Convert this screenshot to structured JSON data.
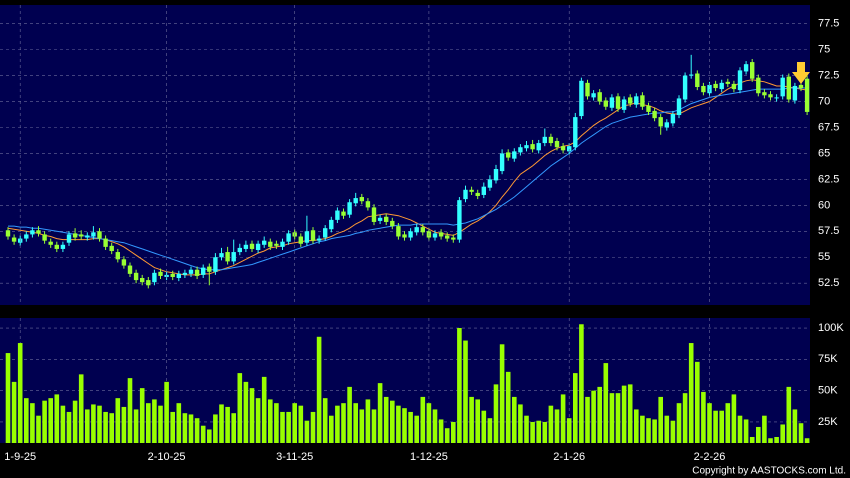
{
  "chart_data": [
    {
      "type": "candlestick",
      "ylim": [
        50.4,
        79.3
      ],
      "yticks": [
        52.5,
        55,
        57.5,
        60,
        62.5,
        65,
        67.5,
        70,
        72.5,
        75,
        77.5
      ],
      "grid": true,
      "up_color": "#33ffff",
      "down_color": "#99ff33",
      "open": [
        57.6,
        56.9,
        56.4,
        56.8,
        57.2,
        57.6,
        57.2,
        56.5,
        56.2,
        55.8,
        56.4,
        57.3,
        57.2,
        56.9,
        57.0,
        57.5,
        56.8,
        56.1,
        55.5,
        54.8,
        54.2,
        53.5,
        53.0,
        52.8,
        52.6,
        53.6,
        53.1,
        53.4,
        53.0,
        53.3,
        53.4,
        53.8,
        53.3,
        54.1,
        53.6,
        55.0,
        55.5,
        54.6,
        55.5,
        55.8,
        56.3,
        55.7,
        56.2,
        56.5,
        56.3,
        56.0,
        56.5,
        57.4,
        57.0,
        56.4,
        57.6,
        56.6,
        56.9,
        57.7,
        58.6,
        59.4,
        59.1,
        60.2,
        60.8,
        60.4,
        59.8,
        58.5,
        58.9,
        58.5,
        58.0,
        57.2,
        56.9,
        57.4,
        57.9,
        57.5,
        56.9,
        57.4,
        57.1,
        56.9,
        56.7,
        60.6,
        61.5,
        61.2,
        61.0,
        61.7,
        62.4,
        63.3,
        65.1,
        64.5,
        65.1,
        65.5,
        65.9,
        65.3,
        66.0,
        66.6,
        66.2,
        65.7,
        65.2,
        65.6,
        68.6,
        71.8,
        70.4,
        70.9,
        70.1,
        69.4,
        70.5,
        69.2,
        70.4,
        69.7,
        70.6,
        69.6,
        69.1,
        68.5,
        67.5,
        67.9,
        68.7,
        70.2,
        72.5,
        72.7,
        71.5,
        70.8,
        71.7,
        71.2,
        71.9,
        71.7,
        71.1,
        72.9,
        73.8,
        72.3,
        70.9,
        70.7,
        70.3,
        70.5,
        72.4,
        70.1,
        71.6,
        72.2
      ],
      "high": [
        57.9,
        57.2,
        57.1,
        57.5,
        57.9,
        58.0,
        57.5,
        56.8,
        56.5,
        56.5,
        57.5,
        57.8,
        57.6,
        57.4,
        58.0,
        57.8,
        57.1,
        56.4,
        55.8,
        55.1,
        54.5,
        53.8,
        53.3,
        53.1,
        53.8,
        53.9,
        53.6,
        53.7,
        53.7,
        53.8,
        54.1,
        54.1,
        54.3,
        54.4,
        55.4,
        55.9,
        56.0,
        56.7,
        56.3,
        56.6,
        56.6,
        56.6,
        57.0,
        56.8,
        56.6,
        56.8,
        57.6,
        57.7,
        57.3,
        59.0,
        57.9,
        57.1,
        58.1,
        58.9,
        59.8,
        59.7,
        60.6,
        61.2,
        61.1,
        60.7,
        60.1,
        59.1,
        59.2,
        58.8,
        58.3,
        57.5,
        57.8,
        58.2,
        58.2,
        57.8,
        57.6,
        57.7,
        57.4,
        57.2,
        60.8,
        61.9,
        61.8,
        61.5,
        62.2,
        62.9,
        63.9,
        65.4,
        65.4,
        65.5,
        65.9,
        66.2,
        66.3,
        66.3,
        67.4,
        66.9,
        66.5,
        66.0,
        66.0,
        68.9,
        72.3,
        72.1,
        71.1,
        71.2,
        70.4,
        70.7,
        70.8,
        70.5,
        70.7,
        70.8,
        70.9,
        69.9,
        69.4,
        68.8,
        68.3,
        69.1,
        70.6,
        72.8,
        74.5,
        73.0,
        71.8,
        71.9,
        72.0,
        72.1,
        72.2,
        72.0,
        73.3,
        73.9,
        74.1,
        72.6,
        71.2,
        71.0,
        70.7,
        72.6,
        72.7,
        71.8,
        71.9,
        72.5
      ],
      "low": [
        56.7,
        56.2,
        56.1,
        56.5,
        56.9,
        57.0,
        56.3,
        55.9,
        55.5,
        55.5,
        56.1,
        56.6,
        56.7,
        56.6,
        56.7,
        56.5,
        55.7,
        55.3,
        54.5,
        53.9,
        53.1,
        52.5,
        52.3,
        52.0,
        52.3,
        52.9,
        52.8,
        52.8,
        52.7,
        53.0,
        53.1,
        52.9,
        53.0,
        52.3,
        53.3,
        54.7,
        54.3,
        54.3,
        55.2,
        55.5,
        55.5,
        55.4,
        55.9,
        55.7,
        55.8,
        55.7,
        56.2,
        56.7,
        56.0,
        56.1,
        56.3,
        56.3,
        56.6,
        57.4,
        58.3,
        58.7,
        58.8,
        59.9,
        60.1,
        59.5,
        58.1,
        58.2,
        58.1,
        57.7,
        56.7,
        56.6,
        56.6,
        57.1,
        57.1,
        56.6,
        56.6,
        56.7,
        56.5,
        56.4,
        56.4,
        60.3,
        61.0,
        60.6,
        60.7,
        61.4,
        62.1,
        63.0,
        64.3,
        64.2,
        64.8,
        65.2,
        65.1,
        65.0,
        65.7,
        65.7,
        65.3,
        65.0,
        64.9,
        65.3,
        68.3,
        70.2,
        70.1,
        69.7,
        69.2,
        69.1,
        69.0,
        68.9,
        69.5,
        69.4,
        69.2,
        68.7,
        68.1,
        66.8,
        67.2,
        67.6,
        68.4,
        69.9,
        72.2,
        71.1,
        70.6,
        70.5,
        71.0,
        70.9,
        71.4,
        70.9,
        70.8,
        72.6,
        71.9,
        70.5,
        70.3,
        70.1,
        70.0,
        70.2,
        69.9,
        69.8,
        71.0,
        68.7
      ],
      "close": [
        57.0,
        56.5,
        56.8,
        57.2,
        57.6,
        57.3,
        56.6,
        56.2,
        55.8,
        56.2,
        57.2,
        56.9,
        57.0,
        57.1,
        57.4,
        56.8,
        56.0,
        55.6,
        54.8,
        54.2,
        53.4,
        52.8,
        52.6,
        52.3,
        53.5,
        53.2,
        53.3,
        53.1,
        53.4,
        53.5,
        53.8,
        53.2,
        54.0,
        53.6,
        55.0,
        55.4,
        54.6,
        55.5,
        55.9,
        56.2,
        55.8,
        56.3,
        56.6,
        56.0,
        56.1,
        56.5,
        57.3,
        57.0,
        56.3,
        57.5,
        56.6,
        56.8,
        57.8,
        58.6,
        59.5,
        59.0,
        60.3,
        60.7,
        60.4,
        59.8,
        58.4,
        58.8,
        58.4,
        58.0,
        57.0,
        56.9,
        57.5,
        57.9,
        57.4,
        56.9,
        57.3,
        57.0,
        56.8,
        56.7,
        60.5,
        61.5,
        61.3,
        60.9,
        61.8,
        62.5,
        63.5,
        65.0,
        64.6,
        65.2,
        65.6,
        65.8,
        65.4,
        66.0,
        66.6,
        66.0,
        65.6,
        65.3,
        65.7,
        68.5,
        72.0,
        70.5,
        70.8,
        70.0,
        69.5,
        70.4,
        69.3,
        70.2,
        69.8,
        70.5,
        69.5,
        69.0,
        68.4,
        67.6,
        68.0,
        68.8,
        70.3,
        72.5,
        72.6,
        71.4,
        70.9,
        71.6,
        71.3,
        71.8,
        71.7,
        71.2,
        73.0,
        73.6,
        72.2,
        70.8,
        70.6,
        70.4,
        70.4,
        72.3,
        70.2,
        71.5,
        71.3,
        69.0
      ],
      "lines": [
        {
          "color": "#ff9933",
          "values": [
            57.8,
            57.7,
            57.6,
            57.5,
            57.4,
            57.3,
            57.1,
            57.0,
            56.8,
            56.7,
            56.7,
            56.7,
            56.7,
            56.7,
            56.8,
            56.8,
            56.7,
            56.5,
            56.3,
            56.0,
            55.6,
            55.2,
            54.8,
            54.4,
            54.0,
            53.8,
            53.6,
            53.5,
            53.4,
            53.3,
            53.3,
            53.3,
            53.4,
            53.4,
            53.6,
            53.8,
            54.0,
            54.2,
            54.5,
            54.8,
            55.1,
            55.4,
            55.6,
            55.9,
            56.0,
            56.1,
            56.3,
            56.4,
            56.5,
            56.6,
            56.6,
            56.7,
            56.8,
            57.0,
            57.3,
            57.5,
            57.8,
            58.2,
            58.5,
            58.9,
            59.0,
            59.1,
            59.2,
            59.1,
            59.0,
            58.8,
            58.6,
            58.3,
            58.0,
            57.7,
            57.4,
            57.3,
            57.2,
            57.1,
            57.4,
            57.8,
            58.2,
            58.5,
            58.9,
            59.4,
            60.0,
            60.8,
            61.5,
            62.3,
            63.0,
            63.4,
            63.8,
            64.3,
            64.8,
            65.2,
            65.5,
            65.7,
            65.8,
            66.1,
            66.7,
            67.2,
            67.7,
            68.1,
            68.4,
            68.8,
            69.2,
            69.6,
            69.7,
            69.9,
            69.7,
            69.6,
            69.4,
            69.1,
            68.9,
            68.8,
            68.8,
            69.1,
            69.4,
            69.6,
            69.8,
            70.0,
            70.4,
            70.8,
            71.2,
            71.5,
            71.8,
            72.0,
            72.1,
            72.0,
            71.9,
            71.7,
            71.5,
            71.5,
            71.4,
            71.3,
            71.2,
            71.1
          ]
        },
        {
          "color": "#3399ff",
          "values": [
            58.0,
            58.0,
            57.9,
            57.9,
            57.8,
            57.8,
            57.7,
            57.6,
            57.5,
            57.4,
            57.3,
            57.2,
            57.1,
            57.0,
            56.9,
            56.8,
            56.7,
            56.6,
            56.5,
            56.4,
            56.2,
            56.0,
            55.8,
            55.6,
            55.4,
            55.2,
            55.0,
            54.8,
            54.6,
            54.4,
            54.2,
            54.0,
            53.9,
            53.8,
            53.8,
            53.8,
            53.9,
            54.0,
            54.1,
            54.2,
            54.3,
            54.5,
            54.7,
            54.9,
            55.1,
            55.3,
            55.5,
            55.7,
            55.9,
            56.1,
            56.3,
            56.5,
            56.6,
            56.8,
            56.9,
            57.0,
            57.1,
            57.3,
            57.4,
            57.6,
            57.7,
            57.8,
            57.9,
            58.0,
            58.1,
            58.1,
            58.1,
            58.2,
            58.2,
            58.2,
            58.2,
            58.2,
            58.2,
            58.1,
            58.2,
            58.3,
            58.5,
            58.7,
            59.0,
            59.3,
            59.6,
            60.0,
            60.4,
            60.8,
            61.3,
            61.8,
            62.3,
            62.8,
            63.3,
            63.8,
            64.2,
            64.6,
            65.0,
            65.5,
            66.0,
            66.4,
            66.8,
            67.2,
            67.6,
            67.9,
            68.1,
            68.3,
            68.5,
            68.6,
            68.7,
            68.8,
            68.9,
            68.9,
            69.0,
            69.0,
            69.2,
            69.5,
            69.8,
            70.0,
            70.2,
            70.4,
            70.5,
            70.6,
            70.7,
            70.8,
            70.9,
            71.0,
            71.1,
            71.2,
            71.2,
            71.2,
            71.2,
            71.2,
            71.3,
            71.3,
            71.3,
            71.3
          ]
        }
      ]
    },
    {
      "type": "bar",
      "color": "#99ff00",
      "ylim": [
        8200,
        108000
      ],
      "yticks": [
        {
          "value": 25000,
          "label": "25K"
        },
        {
          "value": 50000,
          "label": "50K"
        },
        {
          "value": 75000,
          "label": "75K"
        },
        {
          "value": 100000,
          "label": "100K"
        }
      ],
      "grid": true,
      "categories": [
        null,
        null,
        "1-9-25",
        null,
        null,
        null,
        null,
        null,
        null,
        null,
        null,
        null,
        null,
        null,
        null,
        null,
        null,
        null,
        null,
        null,
        null,
        null,
        null,
        null,
        null,
        null,
        "2-10-25",
        null,
        null,
        null,
        null,
        null,
        null,
        null,
        null,
        null,
        null,
        null,
        null,
        null,
        null,
        null,
        null,
        null,
        null,
        null,
        null,
        "3-11-25",
        null,
        null,
        null,
        null,
        null,
        null,
        null,
        null,
        null,
        null,
        null,
        null,
        null,
        null,
        null,
        null,
        null,
        null,
        null,
        null,
        null,
        "1-12-25",
        null,
        null,
        null,
        null,
        null,
        null,
        null,
        null,
        null,
        null,
        null,
        null,
        null,
        null,
        null,
        null,
        null,
        null,
        null,
        null,
        null,
        null,
        "2-1-26",
        null,
        null,
        null,
        null,
        null,
        null,
        null,
        null,
        null,
        null,
        null,
        null,
        null,
        null,
        null,
        null,
        null,
        null,
        null,
        null,
        null,
        null,
        "2-2-26",
        null,
        null,
        null,
        null,
        null,
        null,
        null,
        null,
        null,
        null,
        null,
        null,
        null,
        null,
        null,
        null
      ],
      "values": [
        80000,
        57000,
        88000,
        44000,
        40000,
        30000,
        42000,
        44000,
        47000,
        38000,
        33000,
        42000,
        63000,
        35000,
        39000,
        38000,
        33000,
        32000,
        44000,
        37000,
        60000,
        35000,
        52000,
        40000,
        43000,
        38000,
        57000,
        33000,
        40000,
        32000,
        31000,
        28000,
        22000,
        19000,
        31000,
        39000,
        37000,
        32000,
        64000,
        57000,
        52000,
        44000,
        61000,
        43000,
        40000,
        33000,
        33000,
        40000,
        38000,
        26000,
        33000,
        93000,
        44000,
        30000,
        38000,
        40000,
        53000,
        40000,
        35000,
        43000,
        35000,
        56000,
        45000,
        42000,
        38000,
        36000,
        33000,
        30000,
        45000,
        40000,
        35000,
        27000,
        20000,
        25000,
        100000,
        90000,
        45000,
        43000,
        34000,
        28000,
        55000,
        87000,
        65000,
        45000,
        39000,
        30000,
        25000,
        26000,
        25000,
        38000,
        35000,
        47000,
        28000,
        64000,
        103000,
        45000,
        50000,
        53000,
        72000,
        48000,
        48000,
        54000,
        55000,
        35000,
        30000,
        28000,
        27000,
        45000,
        30000,
        26000,
        40000,
        48000,
        88000,
        73000,
        49000,
        40000,
        34000,
        34000,
        40000,
        47000,
        30000,
        27000,
        13000,
        21000,
        30000,
        12000,
        13000,
        23000,
        53000,
        35000,
        24000,
        12000
      ]
    }
  ],
  "source": "Copyright by AASTOCKS.com Ltd."
}
